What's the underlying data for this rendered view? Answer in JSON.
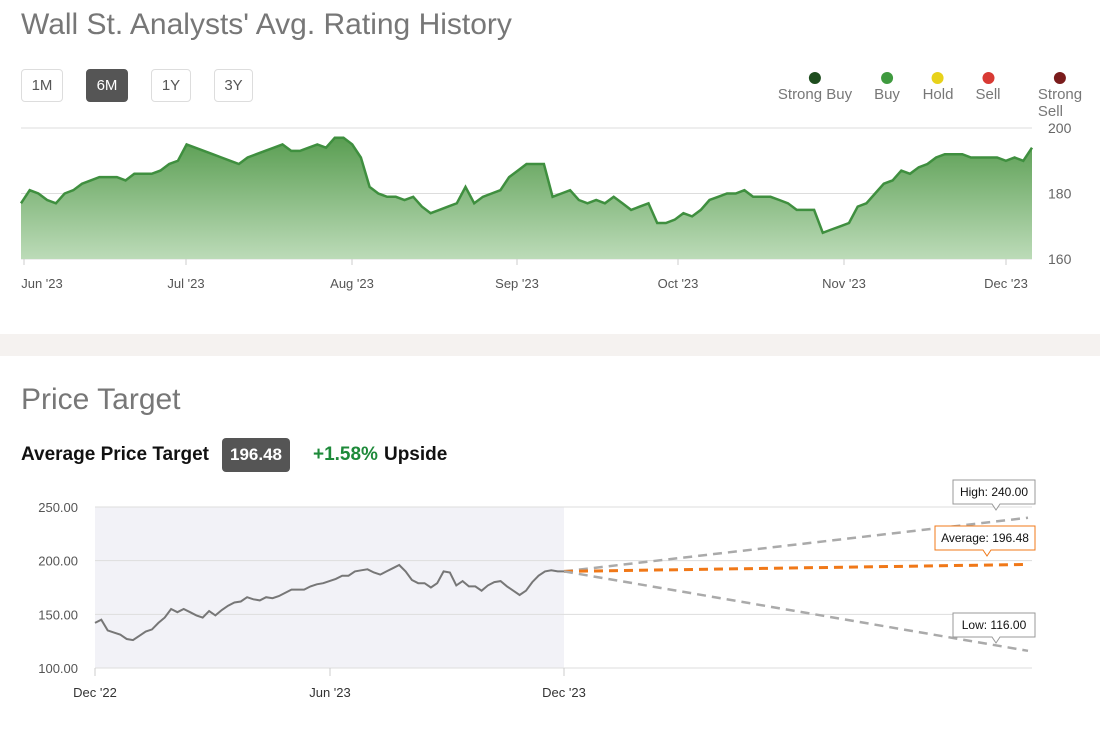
{
  "rating_section": {
    "title": "Wall St. Analysts' Avg. Rating History",
    "ranges": [
      {
        "label": "1M",
        "active": false
      },
      {
        "label": "6M",
        "active": true
      },
      {
        "label": "1Y",
        "active": false
      },
      {
        "label": "3Y",
        "active": false
      }
    ],
    "legend": [
      {
        "label": "Strong Buy",
        "color": "#1e4d1e"
      },
      {
        "label": "Buy",
        "color": "#3f9a3f"
      },
      {
        "label": "Hold",
        "color": "#e8d21a"
      },
      {
        "label": "Sell",
        "color": "#d83a34"
      },
      {
        "label": "Strong Sell",
        "color": "#7a1c1c"
      }
    ]
  },
  "price_section": {
    "title": "Price Target",
    "avg_label": "Average Price Target",
    "avg_value": "196.48",
    "upside_pct": "+1.58%",
    "upside_label": "Upside"
  },
  "chart_data": [
    {
      "type": "area",
      "x_ticks": [
        "Jun '23",
        "Jul '23",
        "Aug '23",
        "Sep '23",
        "Oct '23",
        "Nov '23",
        "Dec '23"
      ],
      "y_ticks": [
        "200",
        "180",
        "160"
      ],
      "ylim": [
        160,
        200
      ],
      "grid": true,
      "color": "#3f8f3f",
      "values": [
        177,
        181,
        180,
        178,
        177,
        180,
        181,
        183,
        184,
        185,
        185,
        185,
        184,
        186,
        186,
        186,
        187,
        189,
        190,
        195,
        194,
        193,
        192,
        191,
        190,
        189,
        191,
        192,
        193,
        194,
        195,
        193,
        193,
        194,
        195,
        194,
        197,
        197,
        195,
        191,
        182,
        180,
        179,
        179,
        178,
        179,
        176,
        174,
        175,
        176,
        177,
        182,
        177,
        179,
        180,
        181,
        185,
        187,
        189,
        189,
        189,
        179,
        180,
        181,
        178,
        177,
        178,
        177,
        179,
        177,
        175,
        176,
        177,
        171,
        171,
        172,
        174,
        173,
        175,
        178,
        179,
        180,
        180,
        181,
        179,
        179,
        179,
        178,
        177,
        175,
        175,
        175,
        168,
        169,
        170,
        171,
        176,
        177,
        180,
        183,
        184,
        187,
        186,
        188,
        189,
        191,
        192,
        192,
        192,
        191,
        191,
        191,
        191,
        190,
        191,
        190,
        194
      ]
    },
    {
      "type": "line",
      "x_ticks": [
        "Dec '22",
        "Jun '23",
        "Dec '23"
      ],
      "y_ticks": [
        "250.00",
        "200.00",
        "150.00",
        "100.00"
      ],
      "ylim": [
        100,
        250
      ],
      "grid": true,
      "price_color": "#777777",
      "price_values": [
        142,
        145,
        135,
        133,
        131,
        127,
        126,
        130,
        134,
        136,
        142,
        147,
        155,
        152,
        155,
        152,
        149,
        147,
        153,
        149,
        154,
        158,
        161,
        162,
        166,
        164,
        163,
        166,
        165,
        167,
        170,
        173,
        173,
        173,
        176,
        178,
        179,
        181,
        183,
        186,
        186,
        190,
        191,
        192,
        189,
        187,
        190,
        193,
        196,
        190,
        182,
        179,
        179,
        175,
        179,
        190,
        189,
        177,
        181,
        176,
        176,
        172,
        177,
        180,
        181,
        176,
        172,
        168,
        172,
        180,
        186,
        190,
        191,
        190,
        190
      ],
      "targets": [
        {
          "label": "High: 240.00",
          "value": 240,
          "color": "#aaaaaa"
        },
        {
          "label": "Average: 196.48",
          "value": 196.48,
          "color": "#f07818"
        },
        {
          "label": "Low: 116.00",
          "value": 116,
          "color": "#aaaaaa"
        }
      ]
    }
  ]
}
